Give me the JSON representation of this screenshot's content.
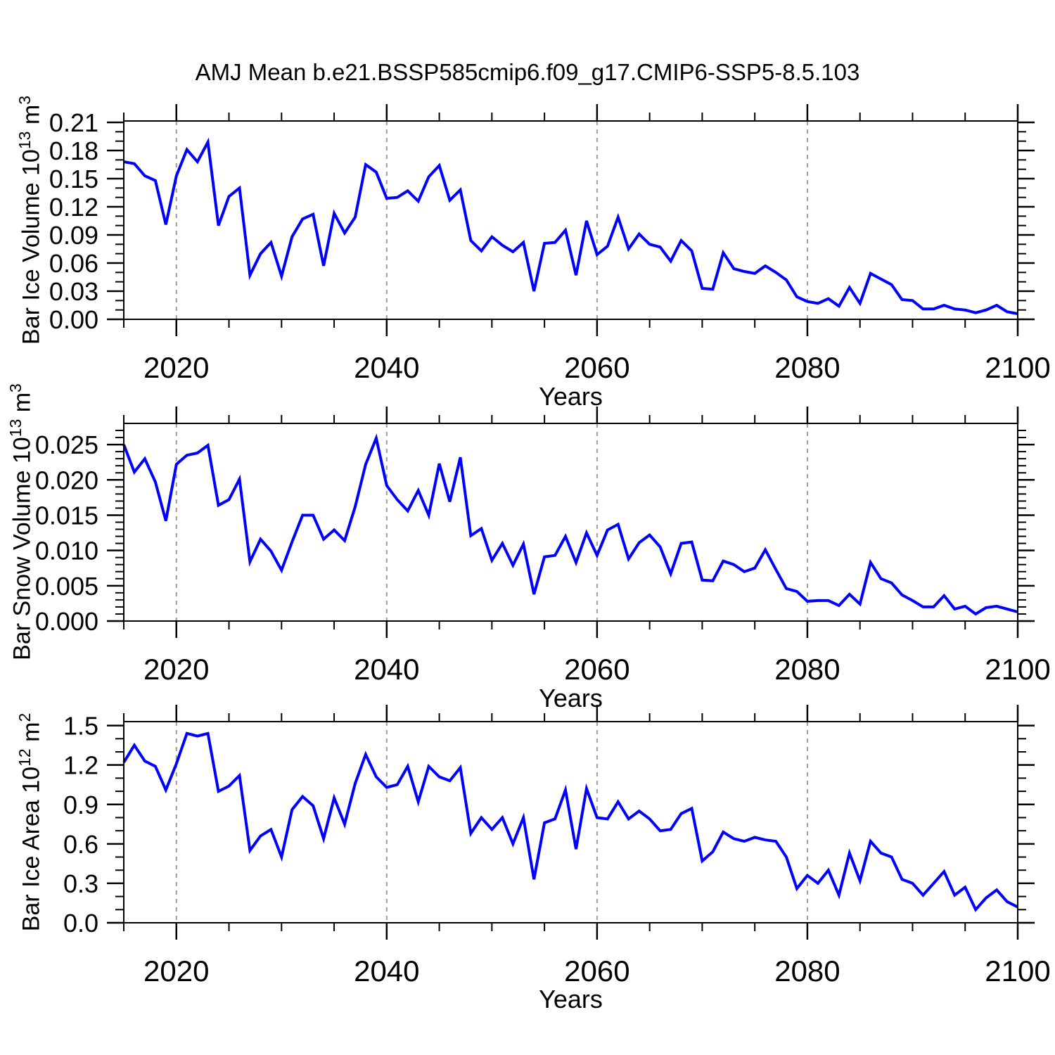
{
  "title": "AMJ Mean b.e21.BSSP585cmip6.f09_g17.CMIP6-SSP5-8.5.103",
  "colors": {
    "line": "#0000ff",
    "grid": "#9e9e9e",
    "axis": "#000000",
    "background": "#ffffff",
    "text": "#000000"
  },
  "chart_data": [
    {
      "type": "line",
      "name": "bar-ice-volume",
      "ylabel_parts": [
        "Bar Ice Volume 10",
        "13",
        " m",
        "3"
      ],
      "xlabel": "Years",
      "x_years": {
        "start": 2015,
        "end": 2100,
        "step": 1
      },
      "xlim": [
        2015,
        2100
      ],
      "xtick_labels": [
        "2020",
        "2040",
        "2060",
        "2080",
        "2100"
      ],
      "x_minor_step": 5,
      "grid_x": [
        2020,
        2040,
        2060,
        2080
      ],
      "ylim": [
        0,
        0.2115
      ],
      "ytick_labels": [
        "0.00",
        "0.03",
        "0.06",
        "0.09",
        "0.12",
        "0.15",
        "0.18",
        "0.21"
      ],
      "y_minor_step": 0.01,
      "values": [
        0.168,
        0.166,
        0.153,
        0.148,
        0.101,
        0.153,
        0.181,
        0.168,
        0.189,
        0.1,
        0.131,
        0.14,
        0.047,
        0.07,
        0.082,
        0.046,
        0.088,
        0.107,
        0.112,
        0.057,
        0.113,
        0.092,
        0.109,
        0.165,
        0.157,
        0.129,
        0.13,
        0.137,
        0.126,
        0.152,
        0.164,
        0.127,
        0.138,
        0.084,
        0.073,
        0.088,
        0.079,
        0.072,
        0.082,
        0.03,
        0.081,
        0.082,
        0.095,
        0.047,
        0.105,
        0.069,
        0.078,
        0.109,
        0.075,
        0.091,
        0.08,
        0.077,
        0.062,
        0.084,
        0.073,
        0.033,
        0.032,
        0.071,
        0.054,
        0.051,
        0.049,
        0.057,
        0.05,
        0.042,
        0.024,
        0.019,
        0.017,
        0.022,
        0.014,
        0.034,
        0.017,
        0.049,
        0.043,
        0.037,
        0.021,
        0.02,
        0.011,
        0.011,
        0.015,
        0.011,
        0.01,
        0.007,
        0.01,
        0.015,
        0.008,
        0.006
      ]
    },
    {
      "type": "line",
      "name": "bar-snow-volume",
      "ylabel_parts": [
        "Bar Snow Volume 10",
        "13",
        " m",
        "3"
      ],
      "xlabel": "Years",
      "x_years": {
        "start": 2015,
        "end": 2100,
        "step": 1
      },
      "xlim": [
        2015,
        2100
      ],
      "xtick_labels": [
        "2020",
        "2040",
        "2060",
        "2080",
        "2100"
      ],
      "x_minor_step": 5,
      "grid_x": [
        2020,
        2040,
        2060,
        2080
      ],
      "ylim": [
        0,
        0.028
      ],
      "ytick_labels": [
        "0.000",
        "0.005",
        "0.010",
        "0.015",
        "0.020",
        "0.025"
      ],
      "y_minor_step": 0.001,
      "values": [
        0.025,
        0.0211,
        0.023,
        0.0197,
        0.0142,
        0.0222,
        0.0235,
        0.0238,
        0.0249,
        0.0164,
        0.0172,
        0.0201,
        0.0084,
        0.0116,
        0.0099,
        0.0072,
        0.0112,
        0.015,
        0.015,
        0.0116,
        0.0129,
        0.0114,
        0.0162,
        0.0222,
        0.0259,
        0.0192,
        0.0172,
        0.0156,
        0.0185,
        0.015,
        0.0223,
        0.0169,
        0.0232,
        0.0121,
        0.0131,
        0.0086,
        0.011,
        0.0079,
        0.0109,
        0.0038,
        0.0091,
        0.0093,
        0.012,
        0.0083,
        0.0125,
        0.0093,
        0.0129,
        0.0137,
        0.0088,
        0.0111,
        0.0122,
        0.0105,
        0.0067,
        0.011,
        0.0112,
        0.0058,
        0.0057,
        0.0085,
        0.008,
        0.007,
        0.0075,
        0.0101,
        0.0073,
        0.0046,
        0.0042,
        0.0028,
        0.0029,
        0.0029,
        0.0022,
        0.0038,
        0.0024,
        0.0083,
        0.006,
        0.0054,
        0.0037,
        0.0029,
        0.002,
        0.002,
        0.0036,
        0.0017,
        0.0021,
        0.001,
        0.0019,
        0.0021,
        0.0017,
        0.0013
      ]
    },
    {
      "type": "line",
      "name": "bar-ice-area",
      "ylabel_parts": [
        "Bar Ice Area 10",
        "12",
        " m",
        "2"
      ],
      "xlabel": "Years",
      "x_years": {
        "start": 2015,
        "end": 2100,
        "step": 1
      },
      "xlim": [
        2015,
        2100
      ],
      "xtick_labels": [
        "2020",
        "2040",
        "2060",
        "2080",
        "2100"
      ],
      "x_minor_step": 5,
      "grid_x": [
        2020,
        2040,
        2060,
        2080
      ],
      "ylim": [
        0,
        1.53
      ],
      "ytick_labels": [
        "0.0",
        "0.3",
        "0.6",
        "0.9",
        "1.2",
        "1.5"
      ],
      "y_minor_step": 0.1,
      "values": [
        1.22,
        1.35,
        1.23,
        1.19,
        1.01,
        1.21,
        1.44,
        1.42,
        1.44,
        1.0,
        1.04,
        1.12,
        0.55,
        0.66,
        0.71,
        0.5,
        0.86,
        0.96,
        0.89,
        0.64,
        0.95,
        0.75,
        1.06,
        1.28,
        1.11,
        1.03,
        1.05,
        1.19,
        0.92,
        1.19,
        1.11,
        1.08,
        1.18,
        0.68,
        0.8,
        0.71,
        0.8,
        0.6,
        0.8,
        0.33,
        0.76,
        0.79,
        1.01,
        0.56,
        1.02,
        0.8,
        0.79,
        0.92,
        0.79,
        0.85,
        0.79,
        0.7,
        0.71,
        0.83,
        0.87,
        0.47,
        0.54,
        0.69,
        0.64,
        0.62,
        0.65,
        0.63,
        0.62,
        0.5,
        0.26,
        0.36,
        0.3,
        0.4,
        0.21,
        0.53,
        0.32,
        0.62,
        0.53,
        0.5,
        0.33,
        0.3,
        0.21,
        0.3,
        0.39,
        0.21,
        0.27,
        0.1,
        0.19,
        0.25,
        0.16,
        0.12
      ]
    }
  ]
}
